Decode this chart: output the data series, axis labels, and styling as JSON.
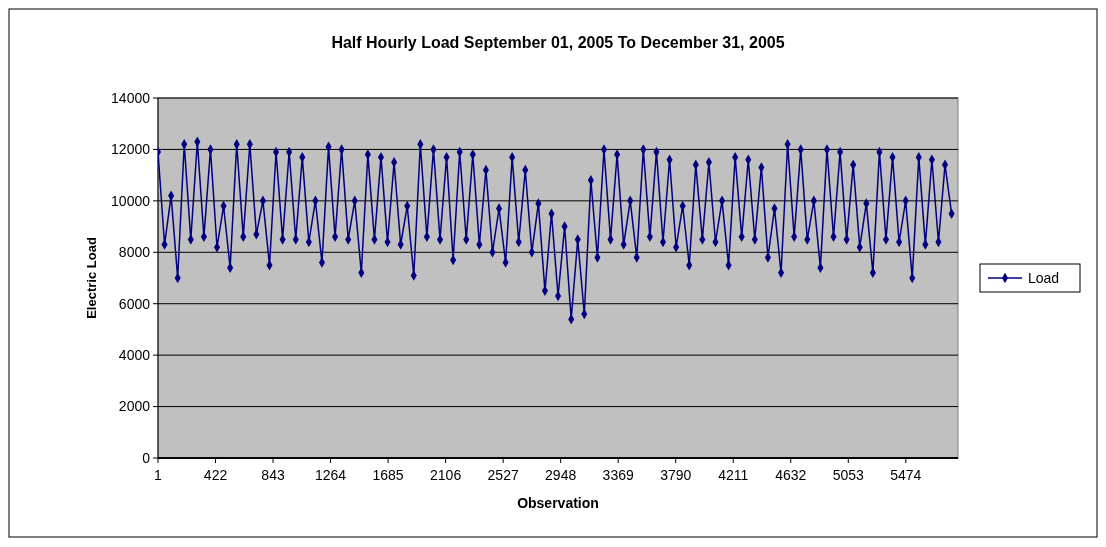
{
  "chart_data": {
    "type": "line",
    "title": "Half Hourly Load September 01, 2005 To December 31, 2005",
    "xlabel": "Observation",
    "ylabel": "Electric Load",
    "x": [
      1,
      49,
      97,
      145,
      193,
      241,
      289,
      337,
      385,
      433,
      481,
      529,
      577,
      625,
      673,
      721,
      769,
      817,
      865,
      913,
      961,
      1009,
      1057,
      1105,
      1153,
      1201,
      1249,
      1297,
      1345,
      1393,
      1441,
      1489,
      1537,
      1585,
      1633,
      1681,
      1729,
      1777,
      1825,
      1873,
      1921,
      1969,
      2017,
      2065,
      2113,
      2161,
      2209,
      2257,
      2305,
      2353,
      2401,
      2449,
      2497,
      2545,
      2593,
      2641,
      2689,
      2737,
      2785,
      2833,
      2881,
      2929,
      2977,
      3025,
      3073,
      3121,
      3169,
      3217,
      3265,
      3313,
      3361,
      3409,
      3457,
      3505,
      3553,
      3601,
      3649,
      3697,
      3745,
      3793,
      3841,
      3889,
      3937,
      3985,
      4033,
      4081,
      4129,
      4177,
      4225,
      4273,
      4321,
      4369,
      4417,
      4465,
      4513,
      4561,
      4609,
      4657,
      4705,
      4753,
      4801,
      4849,
      4897,
      4945,
      4993,
      5041,
      5089,
      5137,
      5185,
      5233,
      5281,
      5329,
      5377,
      5425,
      5473,
      5521,
      5569,
      5617,
      5665,
      5713,
      5761,
      5809
    ],
    "series": [
      {
        "name": "Load",
        "color": "#000080",
        "values": [
          11900,
          8300,
          10200,
          7000,
          12200,
          8500,
          12300,
          8600,
          12000,
          8200,
          9800,
          7400,
          12200,
          8600,
          12200,
          8700,
          10000,
          7500,
          11900,
          8500,
          11900,
          8500,
          11700,
          8400,
          10000,
          7600,
          12100,
          8600,
          12000,
          8500,
          10000,
          7200,
          11800,
          8500,
          11700,
          8400,
          11500,
          8300,
          9800,
          7100,
          12200,
          8600,
          12000,
          8500,
          11700,
          7700,
          11900,
          8500,
          11800,
          8300,
          11200,
          8000,
          9700,
          7600,
          11700,
          8400,
          11200,
          8000,
          9900,
          6500,
          9500,
          6300,
          9000,
          5400,
          8500,
          5600,
          10800,
          7800,
          12000,
          8500,
          11800,
          8300,
          10000,
          7800,
          12000,
          8600,
          11900,
          8400,
          11600,
          8200,
          9800,
          7500,
          11400,
          8500,
          11500,
          8400,
          10000,
          7500,
          11700,
          8600,
          11600,
          8500,
          11300,
          7800,
          9700,
          7200,
          12200,
          8600,
          12000,
          8500,
          10000,
          7400,
          12000,
          8600,
          11900,
          8500,
          11400,
          8200,
          9900,
          7200,
          11900,
          8500,
          11700,
          8400,
          10000,
          7000,
          11700,
          8300,
          11600,
          8400,
          11400,
          9500
        ]
      }
    ],
    "xlim": [
      1,
      5856
    ],
    "xticks": [
      1,
      422,
      843,
      1264,
      1685,
      2106,
      2527,
      2948,
      3369,
      3790,
      4211,
      4632,
      5053,
      5474
    ],
    "ylim": [
      0,
      14000
    ],
    "yticks": [
      0,
      2000,
      4000,
      6000,
      8000,
      10000,
      12000,
      14000
    ],
    "grid": "y",
    "legend": "right",
    "marker": "diamond",
    "line_style": "solid"
  }
}
